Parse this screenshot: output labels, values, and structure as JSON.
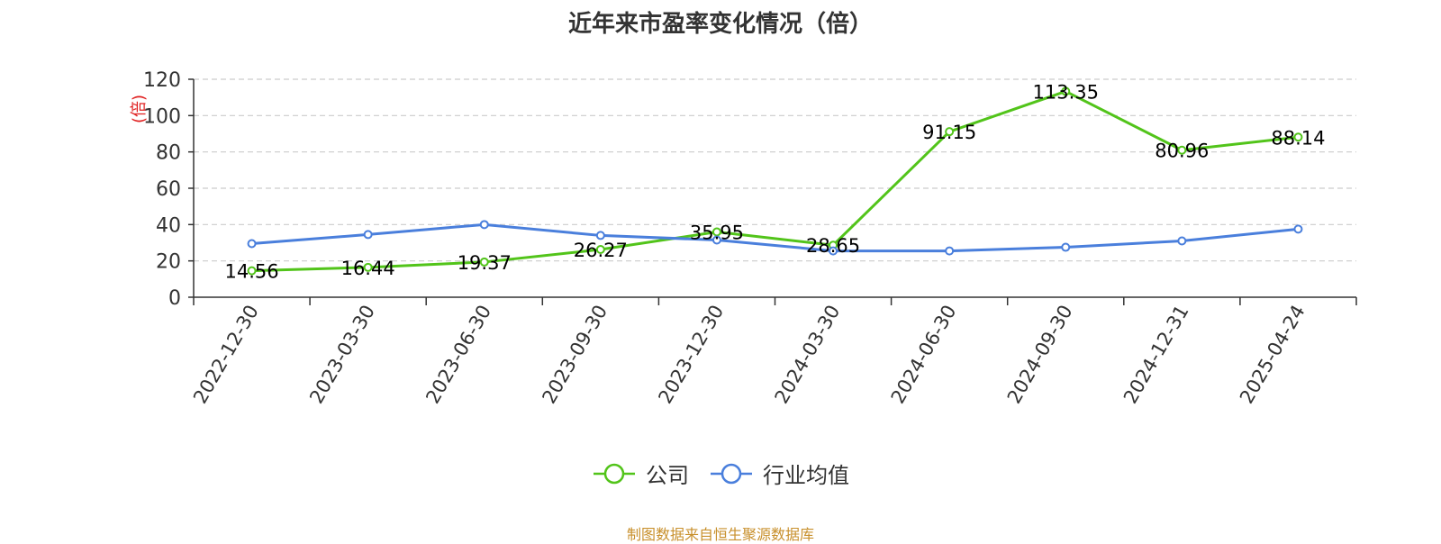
{
  "title": "近年来市盈率变化情况（倍）",
  "source_note": "制图数据来自恒生聚源数据库",
  "colors": {
    "company": "#52c41a",
    "industry": "#4a7fdc",
    "ylabel": "#e02020",
    "grid": "#cccccc",
    "axis": "#333333"
  },
  "chart_data": {
    "type": "line",
    "title": "近年来市盈率变化情况（倍）",
    "ylabel": "(倍)",
    "xlabel": "",
    "ylim": [
      0,
      120
    ],
    "yticks": [
      0,
      20,
      40,
      60,
      80,
      100,
      120
    ],
    "grid": true,
    "legend_position": "bottom-center",
    "categories": [
      "2022-12-30",
      "2023-03-30",
      "2023-06-30",
      "2023-09-30",
      "2023-12-30",
      "2024-03-30",
      "2024-06-30",
      "2024-09-30",
      "2024-12-31",
      "2025-04-24"
    ],
    "series": [
      {
        "name": "公司",
        "color": "#52c41a",
        "values": [
          14.56,
          16.44,
          19.37,
          26.27,
          35.95,
          28.65,
          91.15,
          113.35,
          80.96,
          88.14
        ],
        "data_labels": [
          "14.56",
          "16.44",
          "19.37",
          "26.27",
          "35.95",
          "28.65",
          "91.15",
          "113.35",
          "80.96",
          "88.14"
        ]
      },
      {
        "name": "行业均值",
        "color": "#4a7fdc",
        "values": [
          29.5,
          34.5,
          40.0,
          34.0,
          31.5,
          25.5,
          25.5,
          27.5,
          31.0,
          37.5
        ]
      }
    ]
  }
}
